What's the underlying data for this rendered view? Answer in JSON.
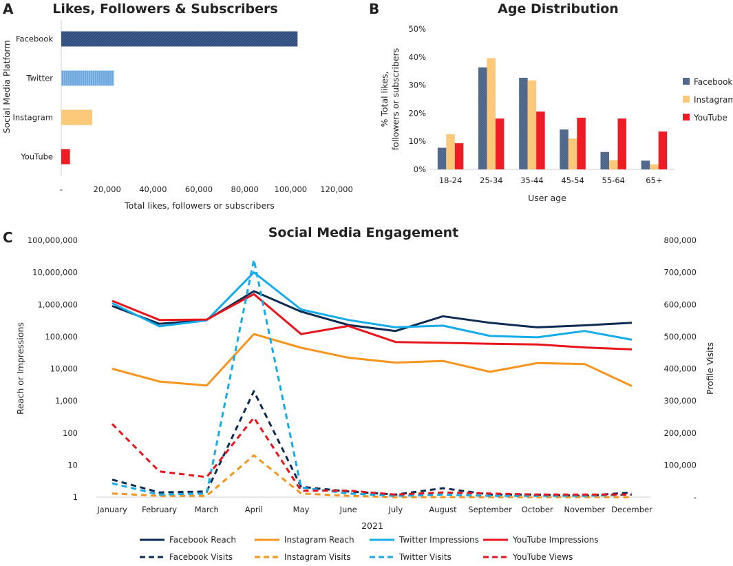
{
  "panel_labels": [
    "A",
    "B",
    "C"
  ],
  "chart_data": [
    {
      "panel": "A",
      "type": "bar",
      "orientation": "horizontal",
      "title": "Likes, Followers & Subscribers",
      "categories": [
        "Facebook",
        "Twitter",
        "Instagram",
        "YouTube"
      ],
      "values": [
        103000,
        23000,
        13500,
        3800
      ],
      "colors": [
        "#2f4b7c",
        "#7fb2e0",
        "#fcc97a",
        "#ee1c25"
      ],
      "xlabel": "Total likes, followers or subscribers",
      "ylabel": "Social Media Platform",
      "xlim": [
        0,
        120000
      ],
      "xticks": [
        0,
        20000,
        40000,
        60000,
        80000,
        100000,
        120000
      ],
      "xtick_labels": [
        "-",
        "20,000",
        "40,000",
        "60,000",
        "80,000",
        "100,000",
        "120,000"
      ]
    },
    {
      "panel": "B",
      "type": "bar",
      "title": "Age Distribution",
      "categories": [
        "18-24",
        "25-34",
        "35-44",
        "45-54",
        "55-64",
        "65+"
      ],
      "series": [
        {
          "name": "Facebook",
          "color": "#4a6285",
          "values": [
            7.7,
            36.3,
            32.6,
            14.2,
            6.2,
            3.1
          ]
        },
        {
          "name": "Instagram",
          "color": "#fcc97a",
          "values": [
            12.5,
            39.6,
            31.7,
            11.0,
            3.3,
            1.8
          ]
        },
        {
          "name": "YouTube",
          "color": "#ee1c25",
          "values": [
            9.3,
            18.1,
            20.6,
            18.4,
            18.1,
            13.5
          ]
        }
      ],
      "xlabel": "User age",
      "ylabel": "% Total likes, followers or subscribers",
      "ylim": [
        0,
        50
      ],
      "yticks": [
        0,
        10,
        20,
        30,
        40,
        50
      ],
      "ytick_labels": [
        "0%",
        "10%",
        "20%",
        "30%",
        "40%",
        "50%"
      ],
      "legend": "right"
    },
    {
      "panel": "C",
      "type": "line",
      "title": "Social Media Engagement",
      "xlabel": "2021",
      "ylabel": "Reach or Impressions",
      "y2label": "Profile Visits",
      "x": [
        "January",
        "February",
        "March",
        "April",
        "May",
        "June",
        "July",
        "August",
        "September",
        "October",
        "November",
        "December"
      ],
      "yscale": "log",
      "ylim": [
        1,
        100000000
      ],
      "yticks": [
        1,
        10,
        100,
        1000,
        10000,
        100000,
        1000000,
        10000000,
        100000000
      ],
      "ytick_labels": [
        "1",
        "10",
        "100",
        "1,000",
        "10,000",
        "100,000",
        "1,000,000",
        "10,000,000",
        "100,000,000"
      ],
      "y2lim": [
        0,
        800000
      ],
      "y2ticks": [
        0,
        100000,
        200000,
        300000,
        400000,
        500000,
        600000,
        700000,
        800000
      ],
      "y2tick_labels": [
        "-",
        "100,000",
        "200,000",
        "300,000",
        "400,000",
        "500,000",
        "600,000",
        "700,000",
        "800,000"
      ],
      "series": [
        {
          "name": "Facebook Reach",
          "color": "#0d2b52",
          "dash": false,
          "values": [
            900000,
            250000,
            330000,
            2600000,
            600000,
            230000,
            150000,
            430000,
            270000,
            195000,
            225000,
            270000
          ]
        },
        {
          "name": "Instagram Reach",
          "color": "#f7941d",
          "dash": false,
          "values": [
            10000,
            4000,
            3000,
            120000,
            45000,
            22000,
            15500,
            17500,
            8000,
            15000,
            14000,
            2900
          ]
        },
        {
          "name": "Twitter Impressions",
          "color": "#14abe9",
          "dash": false,
          "values": [
            1100000,
            210000,
            320000,
            10000000,
            700000,
            330000,
            195000,
            220000,
            105000,
            95000,
            150000,
            80000
          ]
        },
        {
          "name": "YouTube Impressions",
          "color": "#e8141c",
          "dash": false,
          "values": [
            1300000,
            330000,
            340000,
            2100000,
            120000,
            215000,
            68000,
            64000,
            60000,
            57000,
            46000,
            40000
          ]
        },
        {
          "name": "Facebook Visits",
          "color": "#0d2b52",
          "dash": true,
          "values": [
            3.5,
            1.4,
            1.5,
            2000,
            2.1,
            1.5,
            1.2,
            1.9,
            1.2,
            1.2,
            1.1,
            1.4
          ]
        },
        {
          "name": "Instagram Visits",
          "color": "#f7941d",
          "dash": true,
          "values": [
            1.3,
            1.1,
            1.1,
            20,
            1.3,
            1.1,
            1.0,
            1.0,
            1.0,
            1.0,
            1.0,
            1.0
          ]
        },
        {
          "name": "Twitter Visits",
          "color": "#14abe9",
          "dash": true,
          "values": [
            2.7,
            1.2,
            1.3,
            25000000,
            2.0,
            1.3,
            1.1,
            1.2,
            1.1,
            1.1,
            1.1,
            1.2
          ]
        },
        {
          "name": "YouTube Views",
          "color": "#e8141c",
          "dash": true,
          "values": [
            190,
            6.3,
            4.2,
            300,
            1.6,
            1.6,
            1.2,
            1.4,
            1.3,
            1.2,
            1.2,
            1.2
          ]
        }
      ],
      "legend": "bottom"
    }
  ]
}
